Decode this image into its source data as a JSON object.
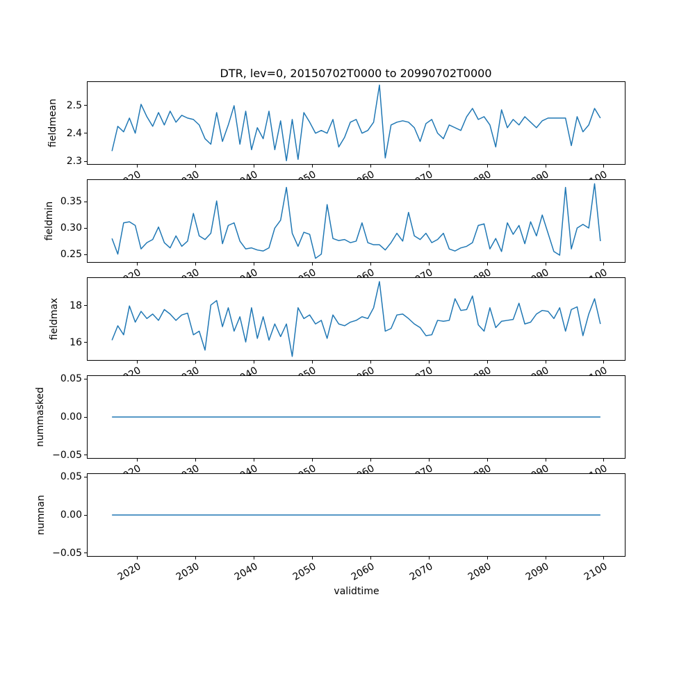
{
  "chart_data": {
    "type": "line",
    "title": "DTR, lev=0, 20150702T0000 to 20990702T0000",
    "xlabel": "validtime",
    "legend": "none",
    "grid": false,
    "line_color": "#1f77b4",
    "background_color": "#ffffff",
    "xlim": [
      2011.3,
      2103.7
    ],
    "xticks": [
      2020,
      2030,
      2040,
      2050,
      2060,
      2070,
      2080,
      2090,
      2100
    ],
    "x_years": [
      2015,
      2016,
      2017,
      2018,
      2019,
      2020,
      2021,
      2022,
      2023,
      2024,
      2025,
      2026,
      2027,
      2028,
      2029,
      2030,
      2031,
      2032,
      2033,
      2034,
      2035,
      2036,
      2037,
      2038,
      2039,
      2040,
      2041,
      2042,
      2043,
      2044,
      2045,
      2046,
      2047,
      2048,
      2049,
      2050,
      2051,
      2052,
      2053,
      2054,
      2055,
      2056,
      2057,
      2058,
      2059,
      2060,
      2061,
      2062,
      2063,
      2064,
      2065,
      2066,
      2067,
      2068,
      2069,
      2070,
      2071,
      2072,
      2073,
      2074,
      2075,
      2076,
      2077,
      2078,
      2079,
      2080,
      2081,
      2082,
      2083,
      2084,
      2085,
      2086,
      2087,
      2088,
      2089,
      2090,
      2091,
      2092,
      2093,
      2094,
      2095,
      2096,
      2097,
      2098,
      2099
    ],
    "subplots": [
      {
        "ylabel": "fieldmean",
        "ylim": [
          2.288,
          2.586
        ],
        "yticks": [
          {
            "v": 2.3,
            "label": "2.3"
          },
          {
            "v": 2.4,
            "label": "2.4"
          },
          {
            "v": 2.5,
            "label": "2.5"
          }
        ],
        "values": [
          2.335,
          2.425,
          2.405,
          2.455,
          2.4,
          2.505,
          2.46,
          2.425,
          2.475,
          2.43,
          2.48,
          2.44,
          2.465,
          2.455,
          2.45,
          2.43,
          2.38,
          2.36,
          2.475,
          2.37,
          2.43,
          2.5,
          2.36,
          2.48,
          2.34,
          2.42,
          2.38,
          2.48,
          2.34,
          2.445,
          2.3,
          2.45,
          2.305,
          2.475,
          2.44,
          2.4,
          2.41,
          2.4,
          2.45,
          2.35,
          2.385,
          2.44,
          2.45,
          2.4,
          2.41,
          2.44,
          2.575,
          2.31,
          2.43,
          2.44,
          2.445,
          2.44,
          2.42,
          2.37,
          2.435,
          2.45,
          2.4,
          2.38,
          2.43,
          2.42,
          2.41,
          2.46,
          2.49,
          2.45,
          2.46,
          2.43,
          2.35,
          2.485,
          2.42,
          2.45,
          2.43,
          2.46,
          2.44,
          2.42,
          2.445,
          2.455,
          2.455,
          2.455,
          2.455,
          2.355,
          2.46,
          2.405,
          2.43,
          2.49,
          2.455
        ]
      },
      {
        "ylabel": "fieldmin",
        "ylim": [
          0.2349,
          0.3921
        ],
        "yticks": [
          {
            "v": 0.25,
            "label": "0.25"
          },
          {
            "v": 0.3,
            "label": "0.30"
          },
          {
            "v": 0.35,
            "label": "0.35"
          }
        ],
        "values": [
          0.28,
          0.25,
          0.31,
          0.312,
          0.305,
          0.26,
          0.272,
          0.278,
          0.302,
          0.272,
          0.262,
          0.285,
          0.265,
          0.275,
          0.328,
          0.285,
          0.278,
          0.29,
          0.352,
          0.27,
          0.305,
          0.31,
          0.275,
          0.26,
          0.262,
          0.258,
          0.256,
          0.262,
          0.3,
          0.315,
          0.378,
          0.29,
          0.265,
          0.292,
          0.288,
          0.242,
          0.25,
          0.345,
          0.28,
          0.276,
          0.278,
          0.272,
          0.275,
          0.31,
          0.272,
          0.268,
          0.268,
          0.258,
          0.272,
          0.29,
          0.275,
          0.33,
          0.285,
          0.278,
          0.29,
          0.272,
          0.278,
          0.29,
          0.26,
          0.256,
          0.262,
          0.265,
          0.272,
          0.305,
          0.308,
          0.26,
          0.28,
          0.255,
          0.31,
          0.288,
          0.305,
          0.27,
          0.312,
          0.285,
          0.325,
          0.29,
          0.255,
          0.248,
          0.378,
          0.26,
          0.3,
          0.307,
          0.3,
          0.385,
          0.275
        ]
      },
      {
        "ylabel": "fieldmax",
        "ylim": [
          15.0,
          19.55
        ],
        "yticks": [
          {
            "v": 16,
            "label": "16"
          },
          {
            "v": 18,
            "label": "18"
          }
        ],
        "values": [
          16.1,
          16.9,
          16.4,
          18.0,
          17.1,
          17.7,
          17.3,
          17.55,
          17.2,
          17.8,
          17.55,
          17.2,
          17.5,
          17.6,
          16.4,
          16.6,
          15.55,
          18.05,
          18.3,
          16.85,
          17.9,
          16.6,
          17.4,
          16.0,
          17.9,
          16.2,
          17.4,
          16.1,
          17.0,
          16.3,
          17.0,
          15.2,
          17.9,
          17.3,
          17.5,
          17.0,
          17.2,
          16.2,
          17.5,
          17.0,
          16.9,
          17.1,
          17.2,
          17.4,
          17.3,
          17.9,
          19.35,
          16.6,
          16.75,
          17.5,
          17.55,
          17.3,
          17.0,
          16.8,
          16.35,
          16.4,
          17.2,
          17.15,
          17.2,
          18.4,
          17.75,
          17.8,
          18.55,
          16.95,
          16.6,
          17.9,
          16.8,
          17.15,
          17.2,
          17.25,
          18.15,
          17.0,
          17.1,
          17.55,
          17.75,
          17.7,
          17.3,
          17.9,
          16.6,
          17.8,
          17.95,
          16.35,
          17.55,
          18.4,
          17.0
        ]
      },
      {
        "ylabel": "nummasked",
        "ylim": [
          -0.055,
          0.055
        ],
        "yticks": [
          {
            "v": -0.05,
            "label": "−0.05"
          },
          {
            "v": 0,
            "label": "0.00"
          },
          {
            "v": 0.05,
            "label": "0.05"
          }
        ],
        "constant": 0,
        "values": []
      },
      {
        "ylabel": "numnan",
        "ylim": [
          -0.055,
          0.055
        ],
        "yticks": [
          {
            "v": -0.05,
            "label": "−0.05"
          },
          {
            "v": 0,
            "label": "0.00"
          },
          {
            "v": 0.05,
            "label": "0.05"
          }
        ],
        "constant": 0,
        "values": []
      }
    ]
  }
}
